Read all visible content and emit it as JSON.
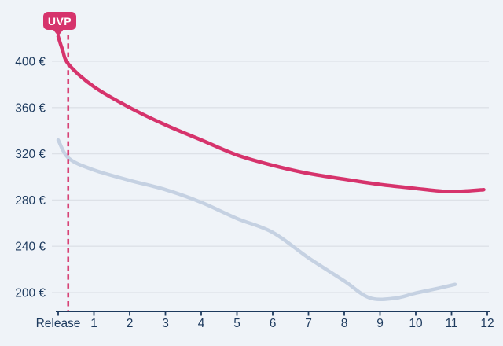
{
  "colors": {
    "background": "#eff3f8",
    "grid": "#dde1e7",
    "axis": "#1d3a5e",
    "label_text": "#1d3a5e",
    "accent_pink": "#d6336c",
    "used_blue": "#c5d1e2",
    "badge_text": "#ffffff"
  },
  "chart_data": {
    "type": "line",
    "title": "",
    "xlabel": "",
    "ylabel": "",
    "grid": "horizontal",
    "legend": "none",
    "x_axis": {
      "tick_labels": [
        "Release",
        "1",
        "2",
        "3",
        "4",
        "5",
        "6",
        "7",
        "8",
        "9",
        "10",
        "11",
        "12"
      ],
      "tick_months": [
        0,
        1,
        2,
        3,
        4,
        5,
        6,
        7,
        8,
        9,
        10,
        11,
        12
      ]
    },
    "y_axis": {
      "unit": "€",
      "tick_labels": [
        "200 €",
        "240 €",
        "280 €",
        "320 €",
        "360 €",
        "400 €"
      ],
      "tick_values": [
        200,
        240,
        280,
        320,
        360,
        400
      ]
    },
    "series": [
      {
        "name": "used-price-curve",
        "color": "#c5d1e2",
        "stroke_width": 4.5,
        "points": [
          [
            0,
            332
          ],
          [
            0.3,
            316
          ],
          [
            1,
            306
          ],
          [
            2,
            297
          ],
          [
            3,
            289
          ],
          [
            4,
            278
          ],
          [
            5,
            264
          ],
          [
            6,
            252
          ],
          [
            7,
            230
          ],
          [
            8,
            210
          ],
          [
            8.7,
            195.5
          ],
          [
            9.4,
            195
          ],
          [
            10,
            199.5
          ],
          [
            10.6,
            203.5
          ],
          [
            11.1,
            207
          ]
        ]
      },
      {
        "name": "new-price-curve",
        "color": "#d6336c",
        "stroke_width": 4.5,
        "points": [
          [
            0,
            421.5
          ],
          [
            0.12,
            410
          ],
          [
            0.3,
            397
          ],
          [
            1,
            378
          ],
          [
            2,
            360
          ],
          [
            3,
            345
          ],
          [
            4,
            332
          ],
          [
            5,
            319
          ],
          [
            6,
            310
          ],
          [
            7,
            303
          ],
          [
            8,
            298
          ],
          [
            9,
            293.5
          ],
          [
            10,
            290
          ],
          [
            10.8,
            287.5
          ],
          [
            11.4,
            287.8
          ],
          [
            11.9,
            289
          ]
        ]
      }
    ],
    "annotation": {
      "label": "UVP",
      "line_month": 0.28,
      "line_style": "dashed",
      "line_color": "#d6336c"
    }
  }
}
